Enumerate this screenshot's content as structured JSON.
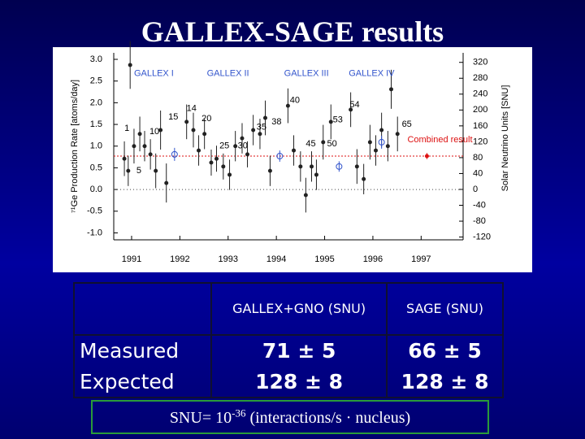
{
  "title": "GALLEX-SAGE results",
  "chart_data": {
    "type": "scatter",
    "y_label": "⁷¹Ge Production Rate [atoms/day]",
    "y2_label": "Solar Neutrino Units [SNU]",
    "xlim": [
      1990.63,
      1997.87
    ],
    "ylim": [
      -1.16,
      3.15
    ],
    "y2lim": [
      -127,
      344
    ],
    "xticks": [
      1991,
      1992,
      1993,
      1994,
      1995,
      1996,
      1997
    ],
    "yticks": [
      {
        "value": 3,
        "label": "3.0"
      },
      2.5,
      {
        "value": 2,
        "label": "2.0"
      },
      1.5,
      {
        "value": 1,
        "label": "1.0"
      },
      0.5,
      {
        "value": 0,
        "label": "0.0"
      },
      -0.5,
      {
        "value": -1,
        "label": "-1.0"
      }
    ],
    "y2ticks": [
      320,
      280,
      240,
      200,
      160,
      120,
      80,
      40,
      0,
      -40,
      -80,
      -120
    ],
    "series": [
      {
        "color": "#222222",
        "marker": "dot",
        "x": [
          1990.97,
          1990.85,
          1990.93,
          1991.05,
          1991.17,
          1991.27,
          1991.39,
          1991.5,
          1991.6,
          1991.72,
          1992.14,
          1992.28,
          1992.39,
          1992.51,
          1992.65,
          1992.76,
          1992.9,
          1993.03,
          1993.15,
          1993.29,
          1993.4,
          1993.52,
          1993.66,
          1993.77,
          1993.87,
          1994.24,
          1994.36,
          1994.5,
          1994.61,
          1994.73,
          1994.83,
          1994.97,
          1995.13,
          1995.54,
          1995.67,
          1995.81,
          1995.94,
          1996.06,
          1996.18,
          1996.31,
          1996.38,
          1996.51
        ],
        "values": [
          2.87,
          0.71,
          0.43,
          1.0,
          1.28,
          1.0,
          0.81,
          0.43,
          1.37,
          0.15,
          1.56,
          1.37,
          0.9,
          1.28,
          0.62,
          0.71,
          0.53,
          0.34,
          1.0,
          1.18,
          0.81,
          1.37,
          1.28,
          1.65,
          0.43,
          1.93,
          0.9,
          0.53,
          -0.13,
          0.53,
          0.34,
          1.09,
          1.56,
          1.84,
          0.53,
          0.24,
          1.09,
          0.9,
          1.37,
          1.0,
          2.31,
          1.28
        ],
        "errors": [
          0.55,
          0.4,
          0.35,
          0.4,
          0.4,
          0.35,
          0.35,
          0.4,
          0.45,
          0.45,
          0.4,
          0.4,
          0.35,
          0.35,
          0.3,
          0.3,
          0.3,
          0.35,
          0.35,
          0.35,
          0.3,
          0.35,
          0.35,
          0.4,
          0.35,
          0.4,
          0.35,
          0.35,
          0.4,
          0.35,
          0.35,
          0.4,
          0.4,
          0.4,
          0.4,
          0.35,
          0.4,
          0.35,
          0.4,
          0.35,
          0.45,
          0.4
        ]
      },
      {
        "color": "#3355cc",
        "marker": "circle",
        "x": [
          1991.89,
          1994.07,
          1995.3,
          1996.18
        ],
        "values": [
          0.81,
          0.77,
          0.53,
          1.09
        ],
        "errors": [
          0.15,
          0.13,
          0.12,
          0.15
        ]
      },
      {
        "color": "#dd1111",
        "marker": "dot",
        "name": "Combined result",
        "x": [
          1997.12
        ],
        "values": [
          0.77
        ],
        "errors": [
          0.07
        ]
      }
    ],
    "annotations": [
      {
        "text": "GALLEX I",
        "x": 1991.05,
        "y": 2.67
      },
      {
        "text": "GALLEX II",
        "x": 1992.56,
        "y": 2.67
      },
      {
        "text": "GALLEX III",
        "x": 1994.16,
        "y": 2.67
      },
      {
        "text": "GALLEX IV",
        "x": 1995.5,
        "y": 2.67
      },
      {
        "text": "1",
        "x": 1990.85,
        "y": 1.41
      },
      {
        "text": "5",
        "x": 1991.1,
        "y": 0.43
      },
      {
        "text": "10",
        "x": 1991.37,
        "y": 1.33
      },
      {
        "text": "15",
        "x": 1991.76,
        "y": 1.67
      },
      {
        "text": "14",
        "x": 1992.14,
        "y": 1.86
      },
      {
        "text": "20",
        "x": 1992.45,
        "y": 1.63
      },
      {
        "text": "25",
        "x": 1992.82,
        "y": 1.0
      },
      {
        "text": "30",
        "x": 1993.2,
        "y": 1.0
      },
      {
        "text": "35",
        "x": 1993.59,
        "y": 1.43
      },
      {
        "text": "38",
        "x": 1993.9,
        "y": 1.56
      },
      {
        "text": "40",
        "x": 1994.28,
        "y": 2.05
      },
      {
        "text": "45",
        "x": 1994.61,
        "y": 1.05
      },
      {
        "text": "50",
        "x": 1995.05,
        "y": 1.05
      },
      {
        "text": "53",
        "x": 1995.17,
        "y": 1.6
      },
      {
        "text": "54",
        "x": 1995.52,
        "y": 1.95
      },
      {
        "text": "65",
        "x": 1996.6,
        "y": 1.5
      }
    ]
  },
  "table": {
    "headers": [
      "GALLEX+GNO (SNU)",
      "SAGE (SNU)"
    ],
    "rows": [
      [
        "Measured",
        "71 ± 5",
        "66 ± 5"
      ],
      [
        "Expected",
        "128 ± 8",
        "128 ± 8"
      ]
    ]
  },
  "footnote": {
    "prefix": "SNU= 10",
    "exponent": "-36",
    "suffix": " (interactions/s · nucleus)"
  }
}
